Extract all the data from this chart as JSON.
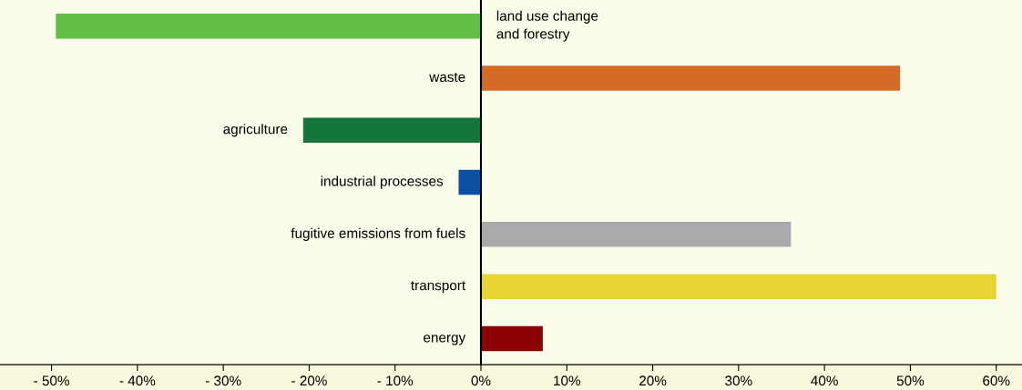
{
  "chart_data": {
    "type": "bar",
    "orientation": "horizontal",
    "categories": [
      "land use change\nand forestry",
      "waste",
      "agriculture",
      "industrial processes",
      "fugitive emissions from fuels",
      "transport",
      "energy"
    ],
    "values": [
      -49.5,
      48.8,
      -20.7,
      -2.6,
      36.1,
      60,
      7.2
    ],
    "colors": [
      "#63bf45",
      "#d66a27",
      "#13773b",
      "#0b4fa3",
      "#a9aaac",
      "#e8d534",
      "#8b0000"
    ],
    "xlim": [
      -56,
      63
    ],
    "xticks": [
      {
        "value": -50,
        "label": "- 50%"
      },
      {
        "value": -40,
        "label": "- 40%"
      },
      {
        "value": -30,
        "label": "- 30%"
      },
      {
        "value": -20,
        "label": "- 20%"
      },
      {
        "value": -10,
        "label": "- 10%"
      },
      {
        "value": 0,
        "label": "0%"
      },
      {
        "value": 10,
        "label": "10%"
      },
      {
        "value": 20,
        "label": "20%"
      },
      {
        "value": 30,
        "label": "30%"
      },
      {
        "value": 40,
        "label": "40%"
      },
      {
        "value": 50,
        "label": "50%"
      },
      {
        "value": 60,
        "label": "60%"
      }
    ],
    "grid": false,
    "legend": false
  }
}
